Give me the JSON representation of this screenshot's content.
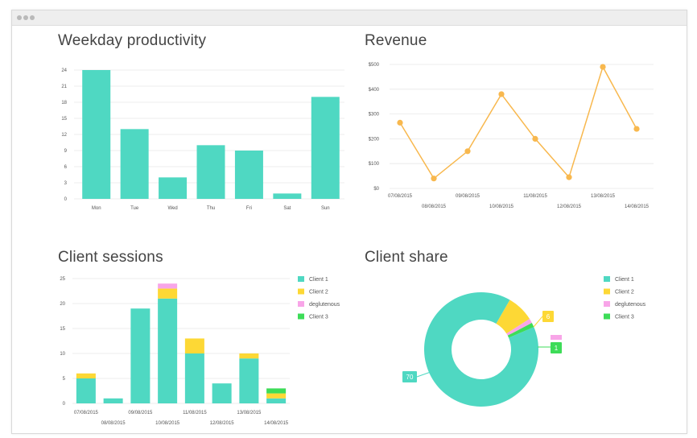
{
  "window": {
    "controls": [
      "dot-1",
      "dot-2",
      "dot-3"
    ]
  },
  "colors": {
    "teal": "#4fd8c2",
    "yellow": "#fdd835",
    "pink": "#f8a5e8",
    "green": "#3ddc58",
    "orange": "#f8b84e",
    "grid": "#e8e8e8",
    "axis_text": "#555555"
  },
  "panels": {
    "weekday": {
      "title": "Weekday productivity"
    },
    "revenue": {
      "title": "Revenue"
    },
    "sessions": {
      "title": "Client sessions"
    },
    "share": {
      "title": "Client share"
    }
  },
  "chart_data": [
    {
      "id": "weekday",
      "type": "bar",
      "title": "Weekday productivity",
      "categories": [
        "Mon",
        "Tue",
        "Wed",
        "Thu",
        "Fri",
        "Sat",
        "Sun"
      ],
      "values": [
        24,
        13,
        4,
        10,
        9,
        1,
        19
      ],
      "yticks": [
        0,
        3,
        6,
        9,
        12,
        15,
        18,
        21,
        24
      ],
      "ylim": [
        0,
        24
      ],
      "grid": true
    },
    {
      "id": "revenue",
      "type": "line",
      "title": "Revenue",
      "x": [
        "07/08/2015",
        "08/08/2015",
        "09/08/2015",
        "10/08/2015",
        "11/08/2015",
        "12/08/2015",
        "13/08/2015",
        "14/08/2015"
      ],
      "values": [
        265,
        40,
        150,
        380,
        200,
        45,
        490,
        240
      ],
      "yticks": [
        "$0",
        "$100",
        "$200",
        "$300",
        "$400",
        "$500"
      ],
      "ylim": [
        0,
        500
      ],
      "grid": true
    },
    {
      "id": "sessions",
      "type": "bar",
      "stacked": true,
      "title": "Client sessions",
      "categories": [
        "07/08/2015",
        "08/08/2015",
        "09/08/2015",
        "10/08/2015",
        "11/08/2015",
        "12/08/2015",
        "13/08/2015",
        "14/08/2015"
      ],
      "series": [
        {
          "name": "Client 1",
          "values": [
            5,
            1,
            19,
            21,
            10,
            4,
            9,
            1
          ]
        },
        {
          "name": "Client 2",
          "values": [
            1,
            0,
            0,
            2,
            3,
            0,
            1,
            1
          ]
        },
        {
          "name": "deglutenous",
          "values": [
            0,
            0,
            0,
            1,
            0,
            0,
            0,
            0
          ]
        },
        {
          "name": "Client 3",
          "values": [
            0,
            0,
            0,
            0,
            0,
            0,
            0,
            1
          ]
        }
      ],
      "yticks": [
        0,
        5,
        10,
        15,
        20,
        25
      ],
      "ylim": [
        0,
        25
      ],
      "legend": "right",
      "grid": true
    },
    {
      "id": "share",
      "type": "pie",
      "donut": true,
      "title": "Client share",
      "labels": [
        "Client 1",
        "Client 2",
        "deglutenous",
        "Client 3"
      ],
      "values": [
        70,
        6,
        1,
        1
      ],
      "legend": "right"
    }
  ]
}
